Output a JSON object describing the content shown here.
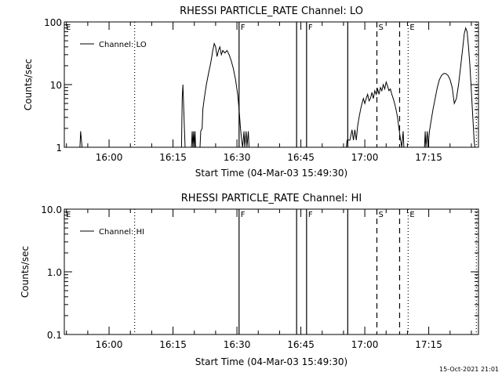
{
  "chart_data": [
    {
      "type": "line",
      "title": "RHESSI PARTICLE_RATE Channel: LO",
      "xlabel": "Start Time (04-Mar-03 15:49:30)",
      "ylabel": "Counts/sec",
      "yscale": "log",
      "xlim": [
        "15:49:30",
        "17:26:40"
      ],
      "ylim": [
        1,
        100
      ],
      "xticks": [
        "16:00",
        "16:15",
        "16:30",
        "16:45",
        "17:00",
        "17:15"
      ],
      "yticks": [
        "1",
        "10",
        "100"
      ],
      "grid": false,
      "legend": "top-left",
      "series": [
        {
          "name": "Channel: LO",
          "points": [
            [
              "15:53:10",
              0.5
            ],
            [
              "15:53:20",
              1.8
            ],
            [
              "15:53:40",
              0.5
            ],
            [
              "16:17:00",
              0.5
            ],
            [
              "16:17:10",
              6
            ],
            [
              "16:17:20",
              10
            ],
            [
              "16:17:40",
              2
            ],
            [
              "16:17:50",
              0.5
            ],
            [
              "16:19:20",
              0.5
            ],
            [
              "16:19:30",
              1.8
            ],
            [
              "16:19:40",
              0.5
            ],
            [
              "16:19:50",
              1.8
            ],
            [
              "16:20:00",
              0.5
            ],
            [
              "16:20:10",
              1.8
            ],
            [
              "16:20:20",
              0.5
            ],
            [
              "16:21:20",
              0.5
            ],
            [
              "16:21:30",
              1.8
            ],
            [
              "16:21:50",
              2
            ],
            [
              "16:22:00",
              4
            ],
            [
              "16:22:20",
              6
            ],
            [
              "16:22:50",
              10
            ],
            [
              "16:23:20",
              15
            ],
            [
              "16:23:50",
              22
            ],
            [
              "16:24:20",
              35
            ],
            [
              "16:24:40",
              45
            ],
            [
              "16:25:00",
              40
            ],
            [
              "16:25:20",
              28
            ],
            [
              "16:25:40",
              35
            ],
            [
              "16:26:00",
              40
            ],
            [
              "16:26:20",
              30
            ],
            [
              "16:26:40",
              35
            ],
            [
              "16:27:10",
              32
            ],
            [
              "16:27:40",
              35
            ],
            [
              "16:28:10",
              30
            ],
            [
              "16:28:40",
              24
            ],
            [
              "16:29:10",
              18
            ],
            [
              "16:29:40",
              12
            ],
            [
              "16:30:10",
              7
            ],
            [
              "16:30:30",
              4
            ],
            [
              "16:30:50",
              2
            ],
            [
              "16:31:10",
              1.2
            ],
            [
              "16:31:20",
              0.5
            ],
            [
              "16:31:40",
              1.8
            ],
            [
              "16:31:50",
              0.5
            ],
            [
              "16:32:10",
              1.8
            ],
            [
              "16:32:20",
              0.5
            ],
            [
              "16:32:40",
              1.8
            ],
            [
              "16:32:50",
              0.5
            ],
            [
              "16:55:40",
              0.5
            ],
            [
              "16:55:50",
              1.3
            ],
            [
              "16:56:30",
              1.3
            ],
            [
              "16:57:00",
              1.9
            ],
            [
              "16:57:20",
              1.3
            ],
            [
              "16:57:40",
              1.9
            ],
            [
              "16:58:00",
              1.3
            ],
            [
              "16:58:20",
              2.2
            ],
            [
              "16:58:40",
              3.0
            ],
            [
              "16:59:00",
              4.0
            ],
            [
              "16:59:20",
              5.0
            ],
            [
              "16:59:40",
              6.0
            ],
            [
              "17:00:00",
              5.0
            ],
            [
              "17:00:20",
              6.0
            ],
            [
              "17:00:40",
              7.0
            ],
            [
              "17:01:00",
              5.5
            ],
            [
              "17:01:20",
              6.0
            ],
            [
              "17:01:40",
              7.5
            ],
            [
              "17:02:00",
              6.0
            ],
            [
              "17:02:20",
              8.0
            ],
            [
              "17:02:40",
              7.0
            ],
            [
              "17:03:00",
              8.5
            ],
            [
              "17:03:20",
              7.0
            ],
            [
              "17:03:40",
              9.0
            ],
            [
              "17:04:00",
              8.0
            ],
            [
              "17:04:20",
              10.0
            ],
            [
              "17:04:40",
              8.5
            ],
            [
              "17:05:00",
              11.0
            ],
            [
              "17:05:20",
              9.5
            ],
            [
              "17:05:40",
              8.0
            ],
            [
              "17:06:00",
              8.5
            ],
            [
              "17:06:20",
              7.0
            ],
            [
              "17:06:40",
              6.0
            ],
            [
              "17:07:00",
              5.0
            ],
            [
              "17:07:20",
              4.0
            ],
            [
              "17:07:40",
              3.0
            ],
            [
              "17:08:00",
              2.0
            ],
            [
              "17:08:20",
              1.4
            ],
            [
              "17:08:40",
              0.5
            ],
            [
              "17:09:00",
              1.8
            ],
            [
              "17:09:10",
              0.5
            ],
            [
              "17:14:00",
              0.5
            ],
            [
              "17:14:10",
              1.8
            ],
            [
              "17:14:20",
              0.5
            ],
            [
              "17:14:40",
              1.8
            ],
            [
              "17:14:50",
              0.5
            ],
            [
              "17:15:10",
              1.8
            ],
            [
              "17:15:30",
              2.5
            ],
            [
              "17:16:00",
              4.0
            ],
            [
              "17:16:30",
              6.0
            ],
            [
              "17:17:00",
              9.0
            ],
            [
              "17:17:30",
              12.0
            ],
            [
              "17:18:00",
              14.0
            ],
            [
              "17:18:30",
              15.0
            ],
            [
              "17:19:00",
              15.0
            ],
            [
              "17:19:30",
              14.0
            ],
            [
              "17:20:00",
              12.0
            ],
            [
              "17:20:30",
              9.0
            ],
            [
              "17:21:00",
              5.0
            ],
            [
              "17:21:30",
              6.0
            ],
            [
              "17:22:00",
              10.0
            ],
            [
              "17:22:30",
              20.0
            ],
            [
              "17:23:00",
              40.0
            ],
            [
              "17:23:20",
              65.0
            ],
            [
              "17:23:40",
              80.0
            ],
            [
              "17:24:00",
              70.0
            ],
            [
              "17:24:20",
              40.0
            ],
            [
              "17:24:40",
              20.0
            ],
            [
              "17:25:00",
              8.0
            ],
            [
              "17:25:20",
              3.0
            ],
            [
              "17:25:40",
              1.2
            ],
            [
              "17:25:50",
              0.5
            ]
          ]
        }
      ],
      "annotations": [
        {
          "text": "E",
          "time": "15:49:30",
          "style": "none"
        },
        {
          "text": "",
          "time": "16:06:00",
          "style": "dotted"
        },
        {
          "text": "F",
          "time": "16:30:30",
          "style": "solid"
        },
        {
          "text": "",
          "time": "16:44:00",
          "style": "solid"
        },
        {
          "text": "F",
          "time": "16:46:20",
          "style": "solid"
        },
        {
          "text": "",
          "time": "16:56:00",
          "style": "solid"
        },
        {
          "text": "S",
          "time": "17:02:50",
          "style": "dashed"
        },
        {
          "text": "",
          "time": "17:08:10",
          "style": "dashed"
        },
        {
          "text": "E",
          "time": "17:10:10",
          "style": "dotted"
        },
        {
          "text": "",
          "time": "17:26:10",
          "style": "dotted"
        }
      ]
    },
    {
      "type": "line",
      "title": "RHESSI PARTICLE_RATE Channel: HI",
      "xlabel": "Start Time (04-Mar-03 15:49:30)",
      "ylabel": "Counts/sec",
      "yscale": "log",
      "xlim": [
        "15:49:30",
        "17:26:40"
      ],
      "ylim": [
        0.1,
        10.0
      ],
      "xticks": [
        "16:00",
        "16:15",
        "16:30",
        "16:45",
        "17:00",
        "17:15"
      ],
      "yticks": [
        "0.1",
        "1.0",
        "10.0"
      ],
      "grid": false,
      "legend": "top-left",
      "series": [
        {
          "name": "Channel: HI",
          "points": []
        }
      ],
      "annotations": [
        {
          "text": "E",
          "time": "15:49:30",
          "style": "none"
        },
        {
          "text": "",
          "time": "16:06:00",
          "style": "dotted"
        },
        {
          "text": "F",
          "time": "16:30:30",
          "style": "solid"
        },
        {
          "text": "",
          "time": "16:44:00",
          "style": "solid"
        },
        {
          "text": "F",
          "time": "16:46:20",
          "style": "solid"
        },
        {
          "text": "",
          "time": "16:56:00",
          "style": "solid"
        },
        {
          "text": "S",
          "time": "17:02:50",
          "style": "dashed"
        },
        {
          "text": "",
          "time": "17:08:10",
          "style": "dashed"
        },
        {
          "text": "E",
          "time": "17:10:10",
          "style": "dotted"
        },
        {
          "text": "",
          "time": "17:26:10",
          "style": "dotted"
        }
      ]
    }
  ],
  "footer": {
    "timestamp": "15-Oct-2021 21:01"
  }
}
